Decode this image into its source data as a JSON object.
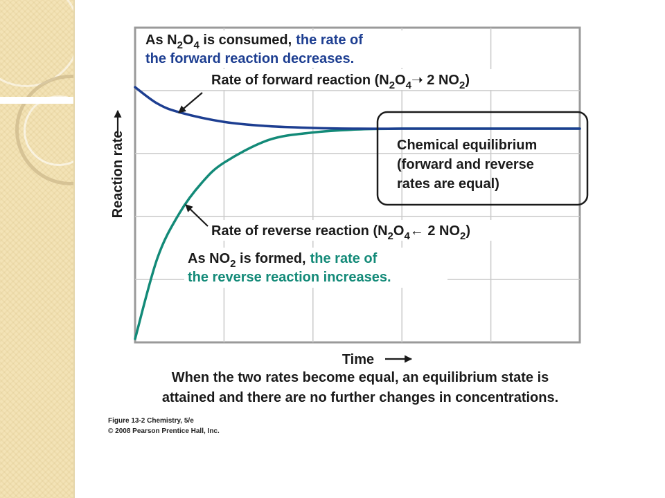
{
  "chart_data": {
    "type": "line",
    "xlabel": "Time",
    "ylabel": "Reaction rate",
    "grid": true,
    "x_range": [
      0,
      10
    ],
    "y_range": [
      0,
      10
    ],
    "series": [
      {
        "key": "forward",
        "color": "#1d3e91",
        "x": [
          0,
          0.5,
          1,
          2,
          3,
          4,
          5,
          6,
          7,
          8,
          9,
          10
        ],
        "y": [
          10.0,
          9.35,
          9.0,
          8.62,
          8.45,
          8.38,
          8.35,
          8.35,
          8.35,
          8.35,
          8.35,
          8.35
        ]
      },
      {
        "key": "reverse",
        "color": "#138a78",
        "x": [
          0,
          0.5,
          1,
          1.5,
          2,
          3,
          4,
          5,
          6,
          7,
          8,
          9,
          10
        ],
        "y": [
          0,
          3.2,
          5.0,
          6.2,
          7.0,
          7.9,
          8.2,
          8.32,
          8.35,
          8.35,
          8.35,
          8.35,
          8.35
        ]
      }
    ],
    "annotations": {
      "forward_note": {
        "line1_prefix": "As N",
        "line1_sub1": "2",
        "line1_mid": "O",
        "line1_sub2": "4",
        "line1_suffix": " is consumed,",
        "line1_colored": "the rate of",
        "line2_colored": "the forward reaction decreases."
      },
      "forward_label": {
        "prefix": "Rate of forward reaction (N",
        "sub1": "2",
        "mid": "O",
        "sub2": "4",
        "arrow": "➝",
        "after_arrow": " 2 NO",
        "sub3": "2",
        "suffix": ")"
      },
      "equilibrium_box": {
        "line1": "Chemical equilibrium",
        "line2": "(forward and reverse",
        "line3": "rates are equal)"
      },
      "reverse_label": {
        "prefix": "Rate of reverse reaction (N",
        "sub1": "2",
        "mid": "O",
        "sub2": "4",
        "arrow": "←",
        "after_arrow": " 2 NO",
        "sub3": "2",
        "suffix": ")"
      },
      "reverse_note": {
        "line1_prefix": "As NO",
        "line1_sub": "2",
        "line1_suffix": " is formed,",
        "line1_colored": "the rate of",
        "line2_colored": "the reverse reaction increases."
      }
    }
  },
  "caption": {
    "line1": "When the two rates become equal, an equilibrium state is",
    "line2": "attained and there are no further changes in concentrations."
  },
  "credits": {
    "line1": "Figure 13-2  Chemistry, 5/e",
    "line2": "© 2008 Pearson Prentice Hall, Inc."
  },
  "colors": {
    "forward_text": "#1d3e91",
    "reverse_text": "#138a78",
    "sidebar": "#f3e3b6"
  }
}
